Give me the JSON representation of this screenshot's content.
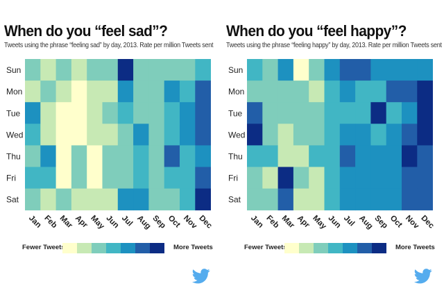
{
  "palette": [
    "#ffffcc",
    "#c7e9b4",
    "#7fcdbb",
    "#41b6c4",
    "#1d91c0",
    "#225ea8",
    "#0c2c84"
  ],
  "twitter_color": "#55acee",
  "icons": {
    "brand": "twitter-bird-icon"
  },
  "chart_data": [
    {
      "id": "sad",
      "type": "heatmap",
      "title": "When do you “feel sad”?",
      "subtitle": "Tweets using the phrase “feeling sad” by day, 2013. Rate per million Tweets sent",
      "rows": [
        "Sun",
        "Mon",
        "Tue",
        "Wed",
        "Thu",
        "Fri",
        "Sat"
      ],
      "columns": [
        "Jan",
        "Feb",
        "Mar",
        "Apr",
        "May",
        "Jun",
        "Jul",
        "Aug",
        "Sep",
        "Oct",
        "Nov",
        "Dec"
      ],
      "values": [
        [
          2,
          1,
          2,
          1,
          2,
          2,
          6,
          2,
          2,
          2,
          2,
          3
        ],
        [
          1,
          2,
          1,
          0,
          1,
          1,
          4,
          2,
          2,
          4,
          3,
          5
        ],
        [
          4,
          1,
          0,
          0,
          1,
          2,
          3,
          2,
          2,
          3,
          4,
          5
        ],
        [
          3,
          1,
          0,
          0,
          1,
          1,
          2,
          4,
          2,
          3,
          4,
          5
        ],
        [
          2,
          4,
          0,
          2,
          0,
          2,
          2,
          3,
          2,
          5,
          3,
          4
        ],
        [
          3,
          3,
          0,
          2,
          0,
          2,
          2,
          3,
          2,
          3,
          3,
          5
        ],
        [
          2,
          1,
          2,
          1,
          1,
          1,
          4,
          4,
          2,
          2,
          3,
          6
        ]
      ],
      "legend": {
        "low": "Fewer Tweets",
        "high": "More Tweets"
      }
    },
    {
      "id": "happy",
      "type": "heatmap",
      "title": "When do you “feel happy”?",
      "subtitle": "Tweets using the phrase “feeling happy” by day, 2013. Rate per million Tweets sent",
      "rows": [
        "Sun",
        "Mon",
        "Tue",
        "Wed",
        "Thu",
        "Fri",
        "Sat"
      ],
      "columns": [
        "Jan",
        "Feb",
        "Mar",
        "Apr",
        "May",
        "Jun",
        "Jul",
        "Aug",
        "Sep",
        "Oct",
        "Nov",
        "Dec"
      ],
      "values": [
        [
          3,
          2,
          4,
          0,
          2,
          4,
          5,
          5,
          4,
          4,
          4,
          4
        ],
        [
          2,
          2,
          2,
          2,
          1,
          3,
          4,
          3,
          3,
          5,
          5,
          6
        ],
        [
          5,
          2,
          2,
          2,
          2,
          3,
          3,
          3,
          6,
          3,
          4,
          6
        ],
        [
          6,
          2,
          1,
          2,
          2,
          3,
          4,
          4,
          3,
          4,
          5,
          6
        ],
        [
          3,
          3,
          1,
          1,
          3,
          3,
          5,
          4,
          4,
          4,
          6,
          5
        ],
        [
          2,
          1,
          6,
          2,
          1,
          3,
          4,
          4,
          4,
          4,
          5,
          5
        ],
        [
          2,
          2,
          5,
          1,
          1,
          3,
          4,
          4,
          4,
          4,
          5,
          5
        ]
      ],
      "legend": {
        "low": "Fewer Tweets",
        "high": "More Tweets"
      }
    }
  ]
}
